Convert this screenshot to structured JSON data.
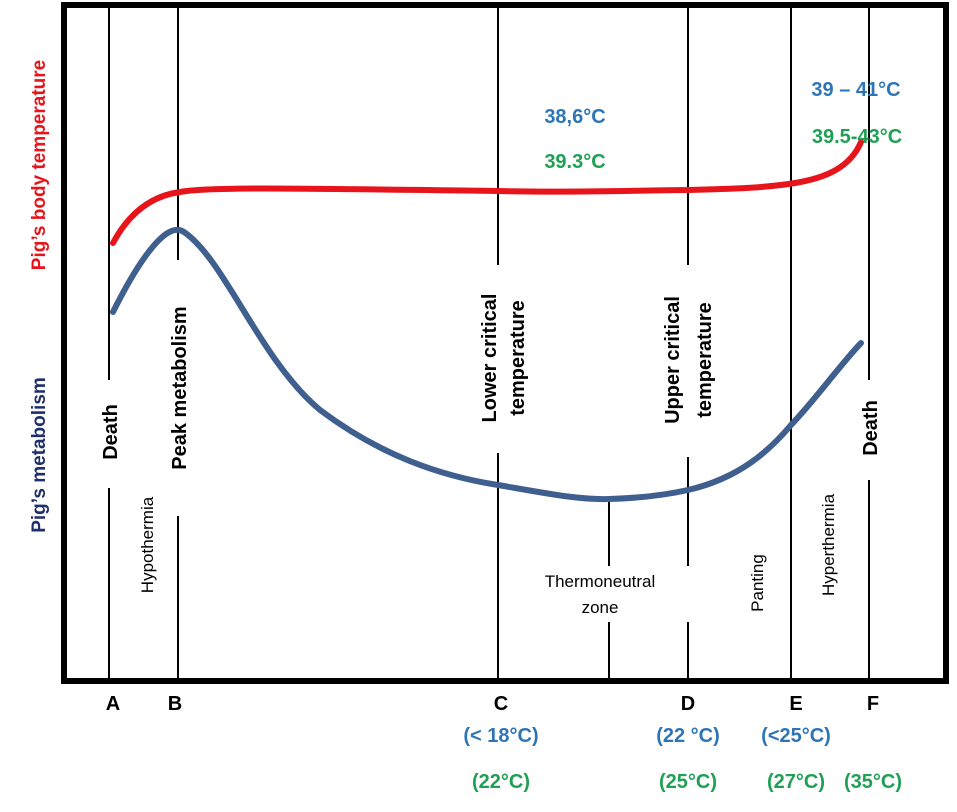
{
  "axes": {
    "y_top_label": "Pig’s body temperature",
    "y_bottom_label": "Pig’s metabolism"
  },
  "points": [
    {
      "letter": "A",
      "blue": "",
      "green": ""
    },
    {
      "letter": "B",
      "blue": "",
      "green": ""
    },
    {
      "letter": "C",
      "blue": "(< 18°C)",
      "green": "(22°C)"
    },
    {
      "letter": "D",
      "blue": "(22 °C)",
      "green": "(25°C)"
    },
    {
      "letter": "E",
      "blue": "(<25°C)",
      "green": "(27°C)"
    },
    {
      "letter": "F",
      "blue": "",
      "green": "(35°C)"
    }
  ],
  "line_labels": {
    "death_left": "Death",
    "peak_metabolism": "Peak metabolism",
    "lower_critical_1": "Lower critical",
    "lower_critical_2": "temperature",
    "upper_critical_1": "Upper critical",
    "upper_critical_2": "temperature",
    "death_right": "Death"
  },
  "zones": {
    "hypothermia": "Hypothermia",
    "thermoneutral_1": "Thermoneutral",
    "thermoneutral_2": "zone",
    "panting": "Panting",
    "hyperthermia": "Hyperthermia"
  },
  "temperatures": {
    "center_blue": "38,6°C",
    "center_green": "39.3°C",
    "right_blue": "39 – 41°C",
    "right_green": "39.5-43°C"
  },
  "colors": {
    "body_temperature_curve": "#e8141b",
    "metabolism_curve": "#3f5f8f",
    "label_blue": "#2e75b6",
    "label_green": "#1fa055",
    "axis_red": "#e8141b",
    "axis_navy": "#1f2f6b"
  }
}
